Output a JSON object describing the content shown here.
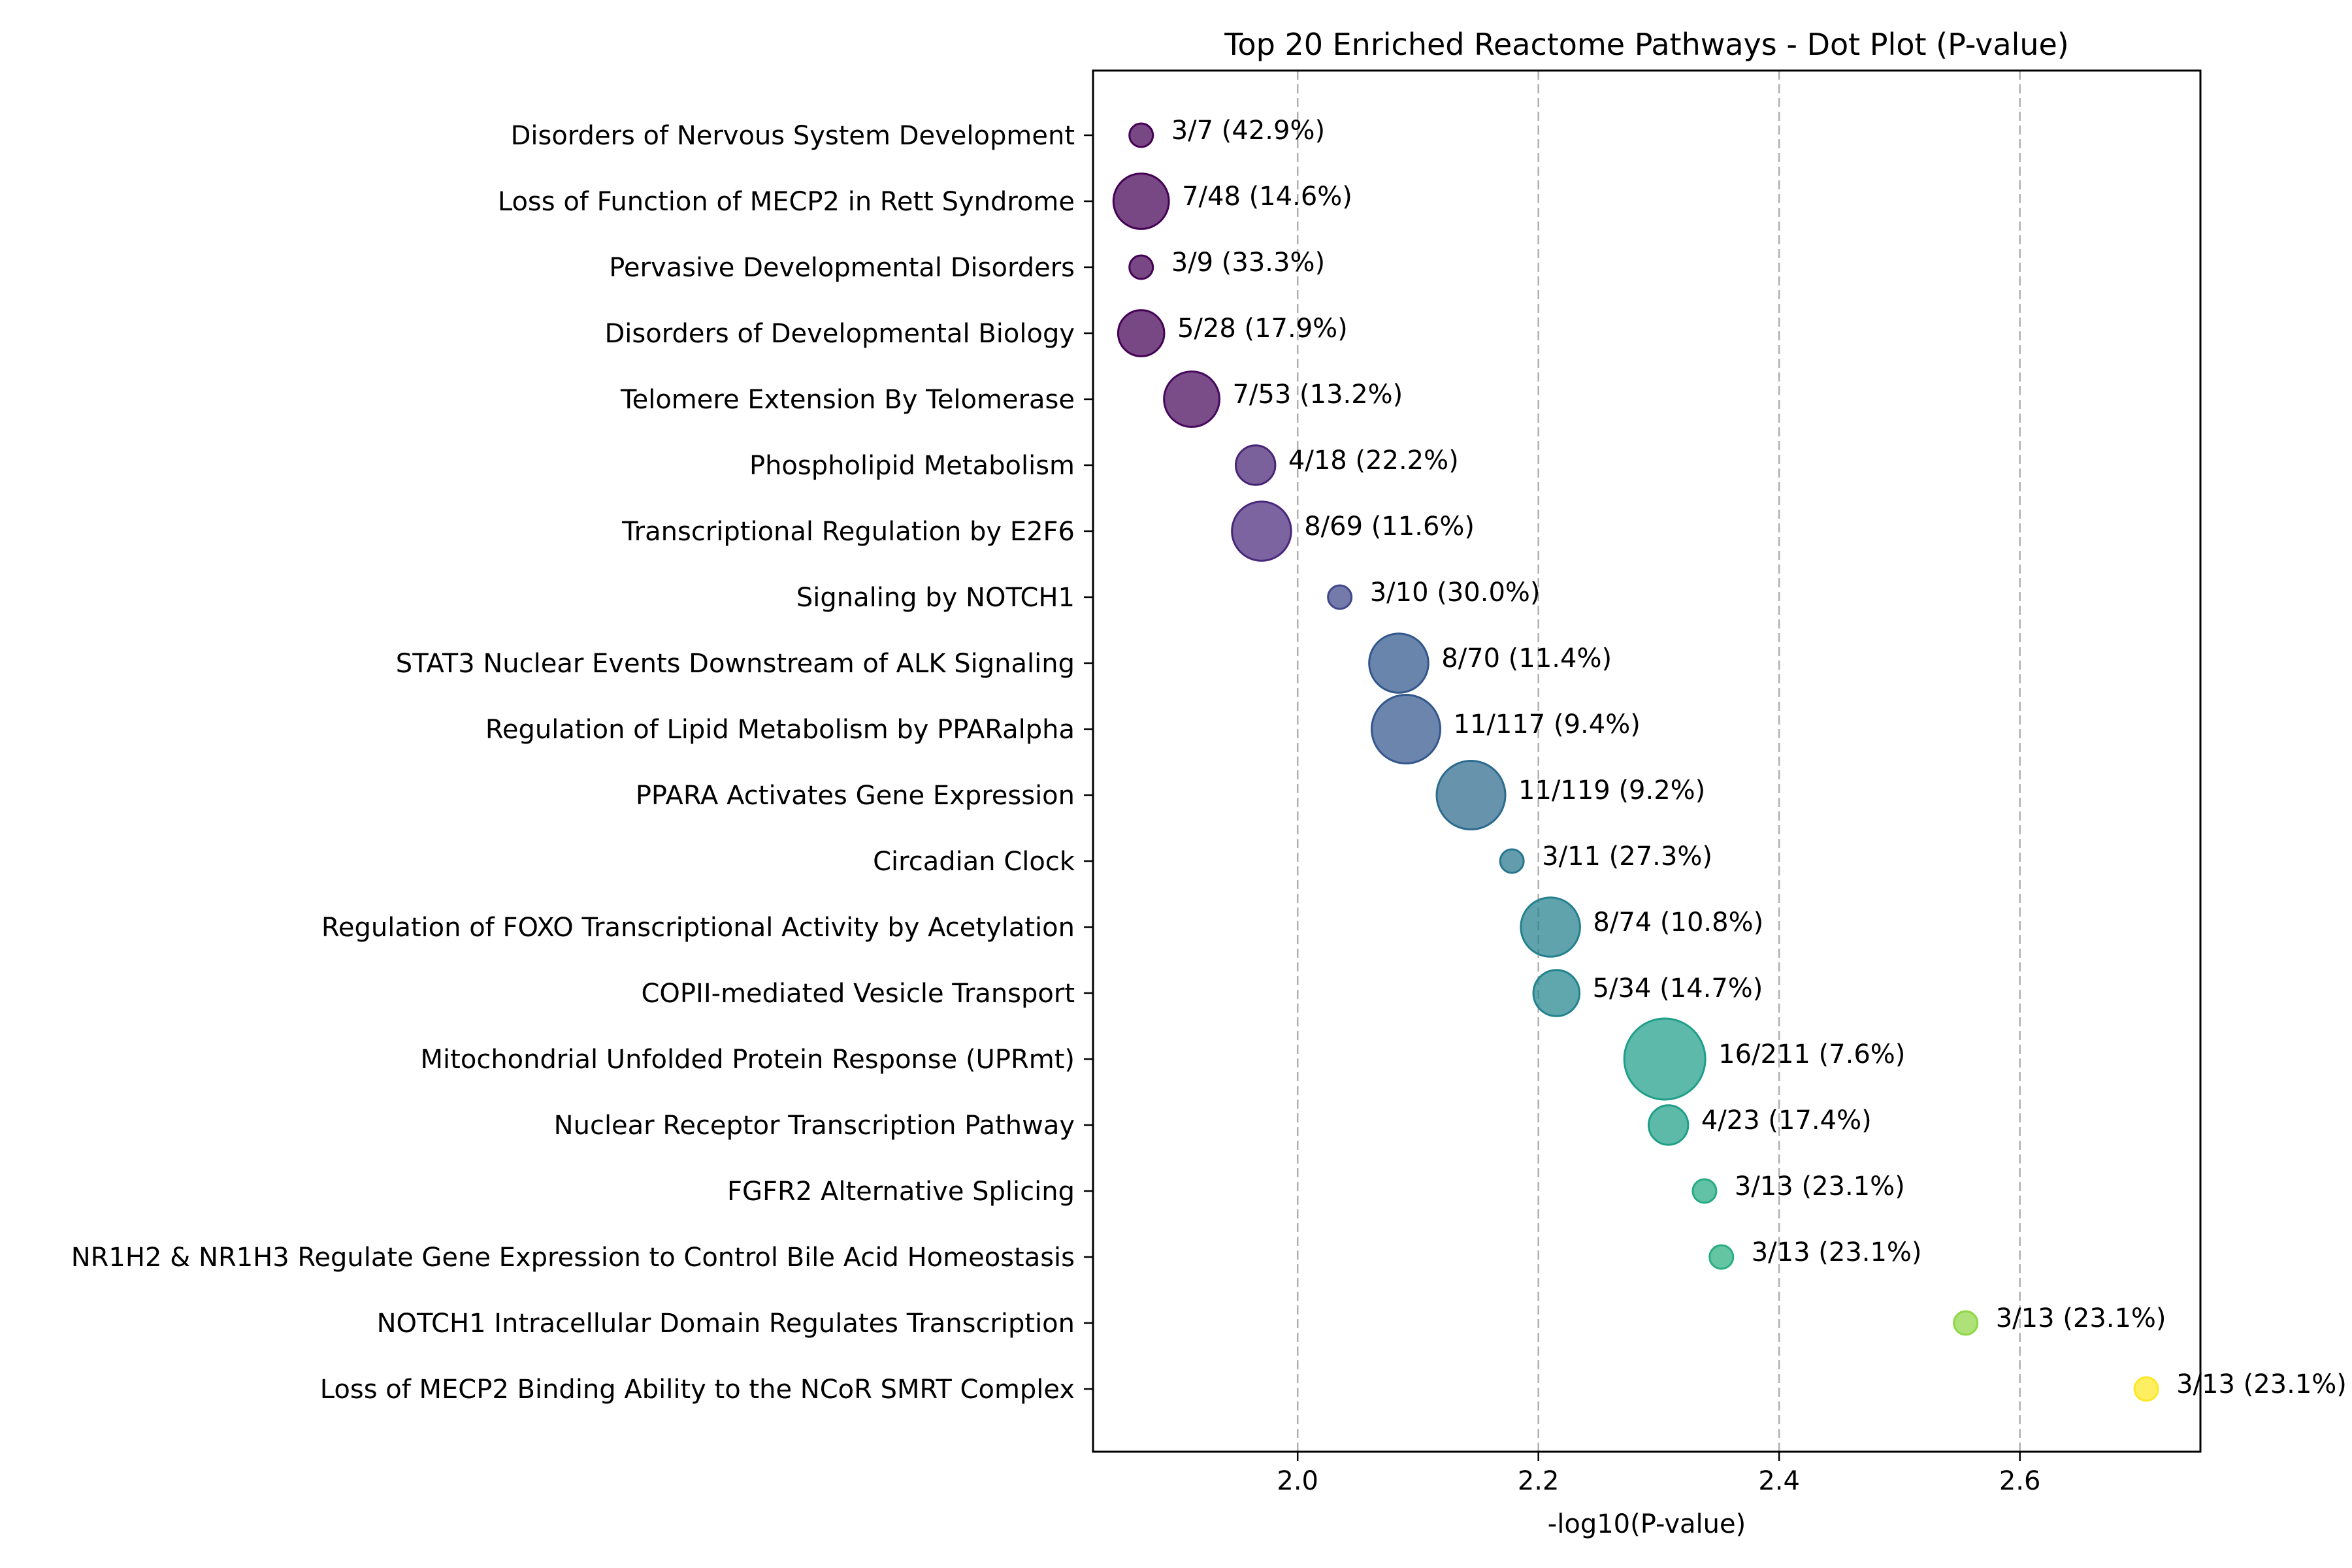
{
  "chart_data": {
    "type": "scatter",
    "title": "Top 20 Enriched Reactome Pathways - Dot Plot (P-value)",
    "xlabel": "-log10(P-value)",
    "ylabel": "",
    "xlim": [
      1.83,
      2.75
    ],
    "xticks": [
      2.0,
      2.2,
      2.4,
      2.6
    ],
    "xtick_labels": [
      "2.0",
      "2.2",
      "2.4",
      "2.6"
    ],
    "grid": "vertical dashed",
    "size_encoding": "overlap gene count",
    "color_encoding": "-log10(P-value), viridis",
    "points": [
      {
        "pathway": "Disorders of Nervous System Development",
        "x": 1.87,
        "count": 3,
        "label": "3/7 (42.9%)",
        "color": "#440154"
      },
      {
        "pathway": "Loss of Function of MECP2 in Rett Syndrome",
        "x": 1.87,
        "count": 7,
        "label": "7/48 (14.6%)",
        "color": "#440154"
      },
      {
        "pathway": "Pervasive Developmental Disorders",
        "x": 1.87,
        "count": 3,
        "label": "3/9 (33.3%)",
        "color": "#440154"
      },
      {
        "pathway": "Disorders of Developmental Biology",
        "x": 1.87,
        "count": 5,
        "label": "5/28 (17.9%)",
        "color": "#440154"
      },
      {
        "pathway": "Telomere Extension By Telomerase",
        "x": 1.912,
        "count": 7,
        "label": "7/53 (13.2%)",
        "color": "#46085c"
      },
      {
        "pathway": "Phospholipid Metabolism",
        "x": 1.965,
        "count": 4,
        "label": "4/18 (22.2%)",
        "color": "#482475"
      },
      {
        "pathway": "Transcriptional Regulation by E2F6",
        "x": 1.97,
        "count": 8,
        "label": "8/69 (11.6%)",
        "color": "#48287a"
      },
      {
        "pathway": "Signaling by NOTCH1",
        "x": 2.035,
        "count": 3,
        "label": "3/10 (30.0%)",
        "color": "#3f4889"
      },
      {
        "pathway": "STAT3 Nuclear Events Downstream of ALK Signaling",
        "x": 2.084,
        "count": 8,
        "label": "8/70 (11.4%)",
        "color": "#31568c"
      },
      {
        "pathway": "Regulation of Lipid Metabolism by PPARalpha",
        "x": 2.09,
        "count": 11,
        "label": "11/117 (9.4%)",
        "color": "#33568c"
      },
      {
        "pathway": "PPARA Activates Gene Expression",
        "x": 2.144,
        "count": 11,
        "label": "11/119 (9.2%)",
        "color": "#2c6a8e"
      },
      {
        "pathway": "Circadian Clock",
        "x": 2.178,
        "count": 3,
        "label": "3/11 (27.3%)",
        "color": "#27768e"
      },
      {
        "pathway": "Regulation of FOXO Transcriptional Activity by Acetylation",
        "x": 2.21,
        "count": 8,
        "label": "8/74 (10.8%)",
        "color": "#23808e"
      },
      {
        "pathway": "COPII-mediated Vesicle Transport",
        "x": 2.215,
        "count": 5,
        "label": "5/34 (14.7%)",
        "color": "#22838e"
      },
      {
        "pathway": "Mitochondrial Unfolded Protein Response (UPRmt)",
        "x": 2.305,
        "count": 16,
        "label": "16/211 (7.6%)",
        "color": "#1f9e89"
      },
      {
        "pathway": "Nuclear Receptor Transcription Pathway",
        "x": 2.308,
        "count": 4,
        "label": "4/23 (17.4%)",
        "color": "#1f9f88"
      },
      {
        "pathway": "FGFR2 Alternative Splicing",
        "x": 2.338,
        "count": 3,
        "label": "3/13 (23.1%)",
        "color": "#25ab82"
      },
      {
        "pathway": "NR1H2 & NR1H3 Regulate Gene Expression to Control Bile Acid Homeostasis",
        "x": 2.352,
        "count": 3,
        "label": "3/13 (23.1%)",
        "color": "#28ae80"
      },
      {
        "pathway": "NOTCH1 Intracellular Domain Regulates Transcription",
        "x": 2.555,
        "count": 3,
        "label": "3/13 (23.1%)",
        "color": "#8fd744"
      },
      {
        "pathway": "Loss of MECP2 Binding Ability to the NCoR SMRT Complex",
        "x": 2.705,
        "count": 3,
        "label": "3/13 (23.1%)",
        "color": "#fde725"
      }
    ]
  }
}
